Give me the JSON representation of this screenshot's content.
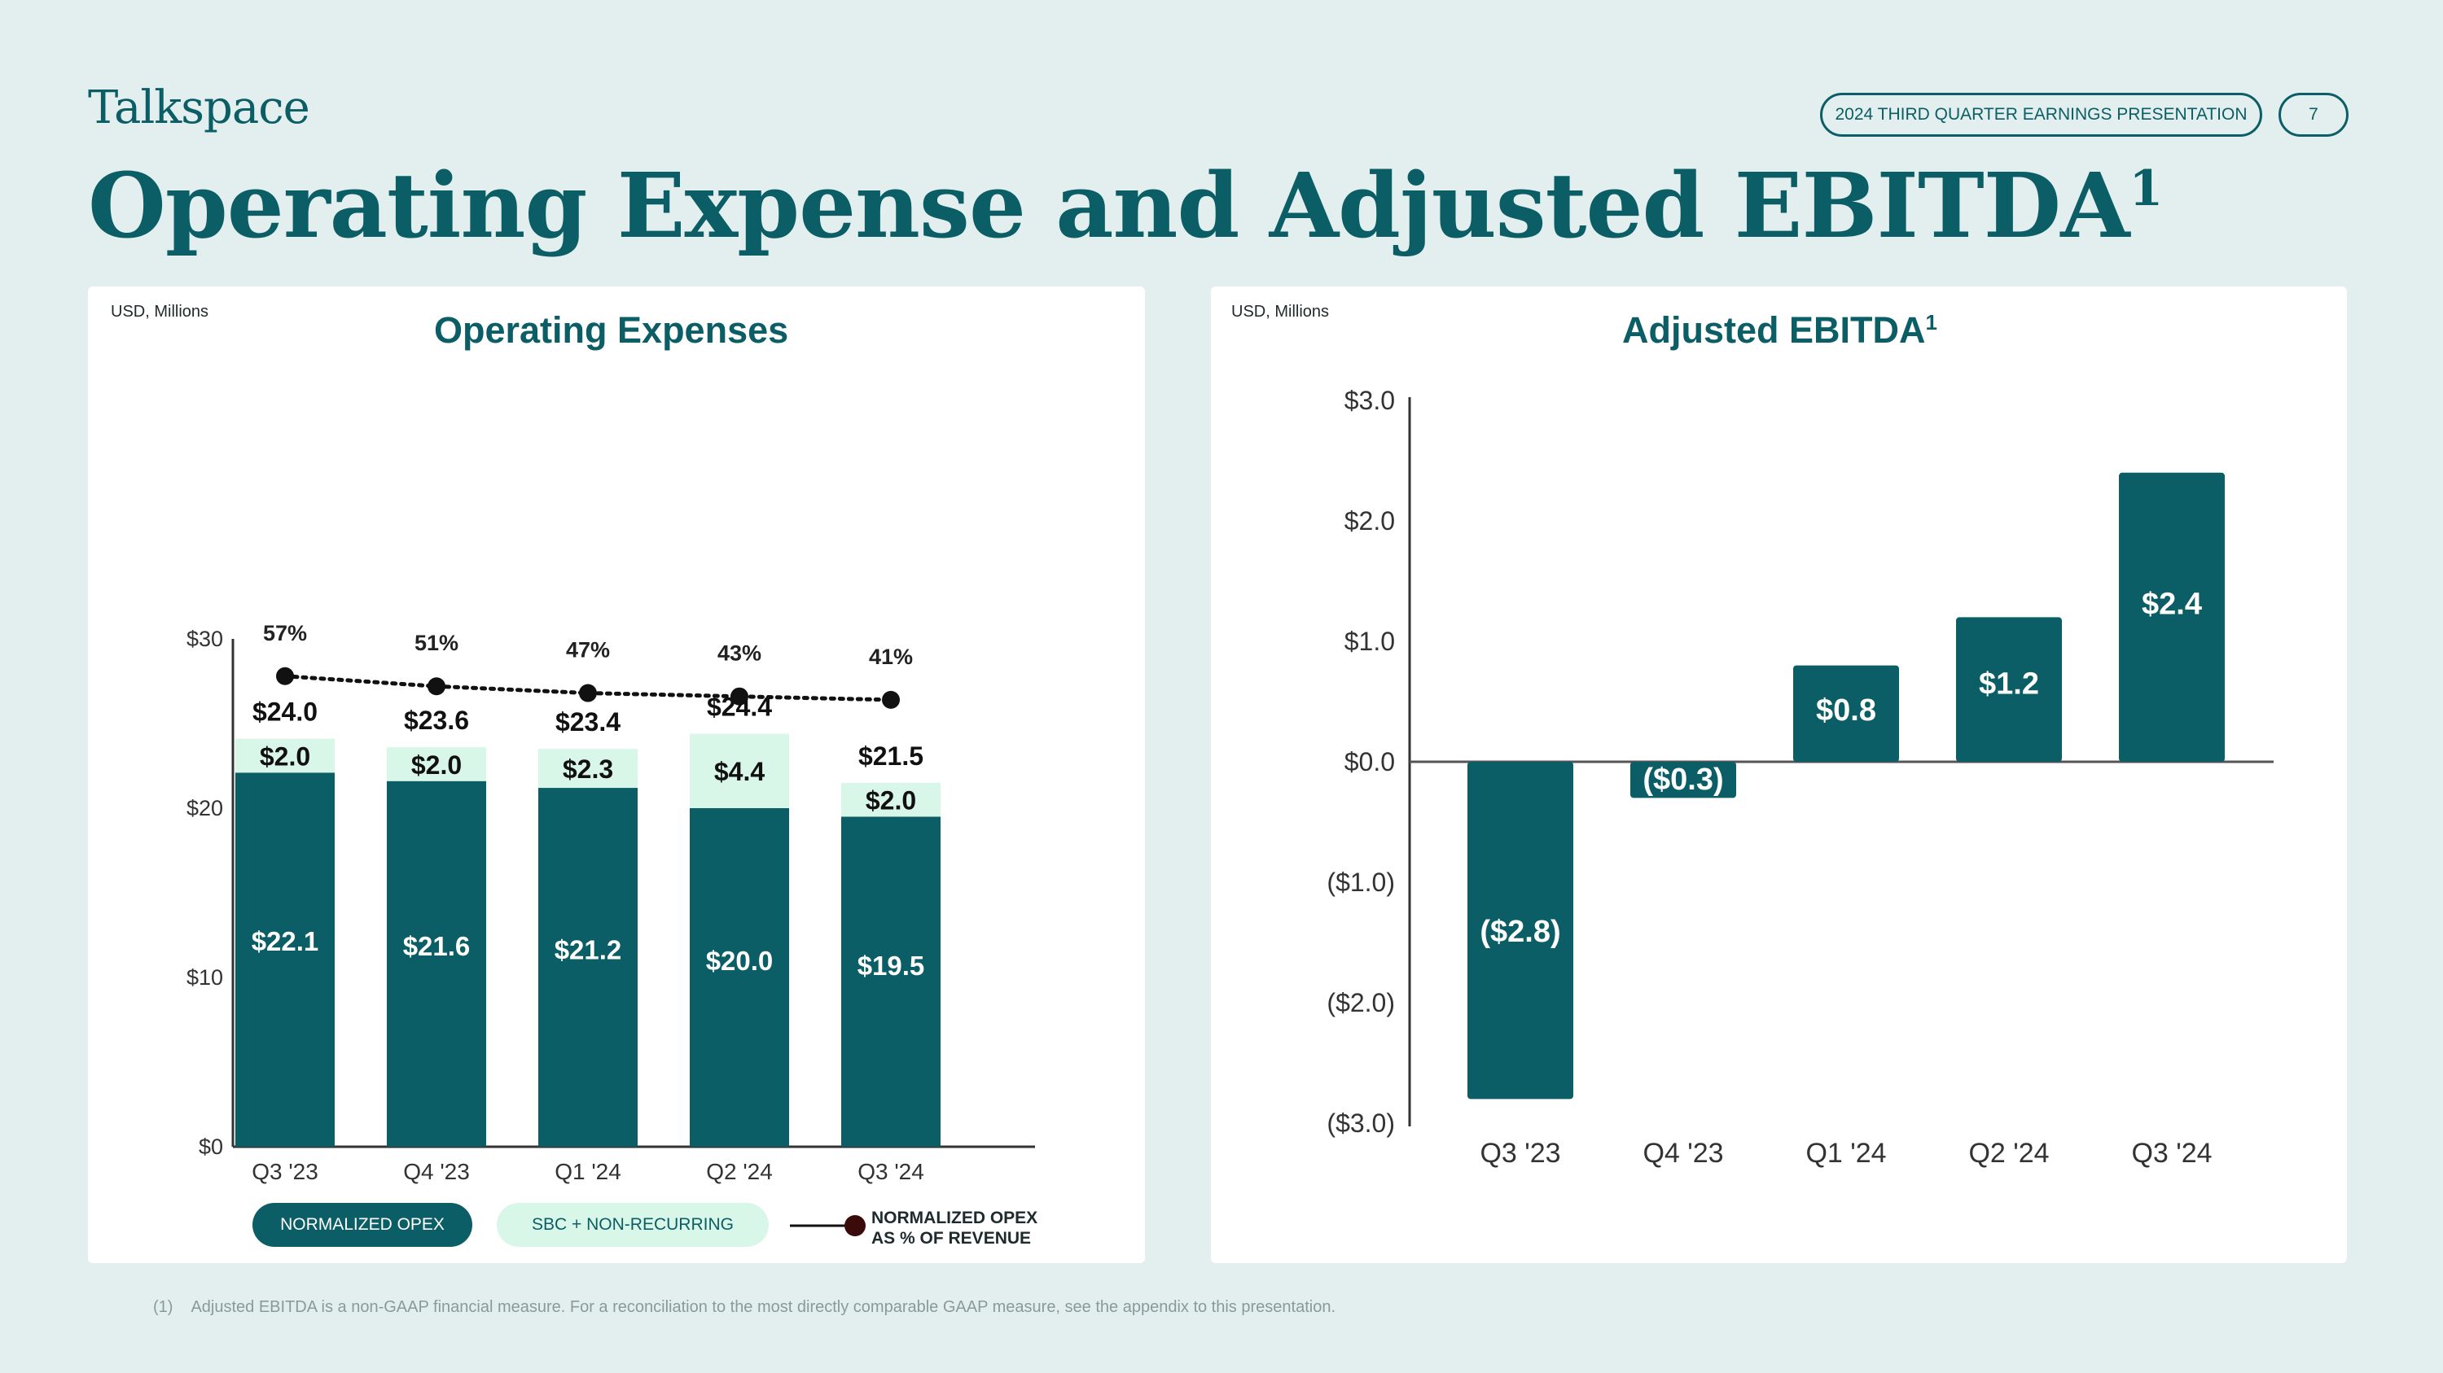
{
  "header": {
    "logo": "Talkspace",
    "presentation_label": "2024 THIRD QUARTER EARNINGS PRESENTATION",
    "page_number": "7",
    "title": "Operating Expense and Adjusted EBITDA",
    "title_footnote_marker": "1"
  },
  "colors": {
    "brand": "#0b5e65",
    "light_green": "#d9f7e8",
    "background": "#e2efee",
    "dot": "#111111"
  },
  "chart_data": [
    {
      "type": "bar",
      "stacked": true,
      "unit_label": "USD, Millions",
      "title": "Operating Expenses",
      "categories": [
        "Q3 '23",
        "Q4 '23",
        "Q1 '24",
        "Q2 '24",
        "Q3 '24"
      ],
      "series": [
        {
          "name": "NORMALIZED OPEX",
          "values": [
            22.1,
            21.6,
            21.2,
            20.0,
            19.5
          ],
          "labels": [
            "$22.1",
            "$21.6",
            "$21.2",
            "$20.0",
            "$19.5"
          ]
        },
        {
          "name": "SBC + NON-RECURRING",
          "values": [
            2.0,
            2.0,
            2.3,
            4.4,
            2.0
          ],
          "labels": [
            "$2.0",
            "$2.0",
            "$2.3",
            "$4.4",
            "$2.0"
          ]
        }
      ],
      "totals": [
        "$24.0",
        "$23.6",
        "$23.4",
        "$24.4",
        "$21.5"
      ],
      "line_series": {
        "name_line1": "NORMALIZED OPEX",
        "name_line2": "AS % OF REVENUE",
        "values": [
          57,
          51,
          47,
          43,
          41
        ],
        "labels": [
          "57%",
          "51%",
          "47%",
          "43%",
          "41%"
        ],
        "y_positions": [
          27.8,
          27.2,
          26.8,
          26.6,
          26.4
        ]
      },
      "y_ticks": [
        "$0",
        "$10",
        "$20",
        "$30"
      ],
      "y_tick_values": [
        0,
        10,
        20,
        30
      ],
      "ylim": [
        0,
        30
      ]
    },
    {
      "type": "bar",
      "unit_label": "USD, Millions",
      "title": "Adjusted EBITDA",
      "title_footnote_marker": "1",
      "categories": [
        "Q3 '23",
        "Q4 '23",
        "Q1 '24",
        "Q2 '24",
        "Q3 '24"
      ],
      "values": [
        -2.8,
        -0.3,
        0.8,
        1.2,
        2.4
      ],
      "labels": [
        "($2.8)",
        "($0.3)",
        "$0.8",
        "$1.2",
        "$2.4"
      ],
      "y_ticks": [
        "$3.0",
        "$2.0",
        "$1.0",
        "$0.0",
        "($1.0)",
        "($2.0)",
        "($3.0)"
      ],
      "y_tick_values": [
        3,
        2,
        1,
        0,
        -1,
        -2,
        -3
      ],
      "ylim": [
        -3,
        3
      ]
    }
  ],
  "legend": {
    "normalized_opex": "NORMALIZED OPEX",
    "sbc_nonrecurring": "SBC + NON-RECURRING",
    "line_label_1": "NORMALIZED OPEX",
    "line_label_2": "AS % OF REVENUE"
  },
  "footnote": {
    "number": "(1)",
    "text": "Adjusted EBITDA is a non-GAAP financial measure. For a reconciliation to the most directly comparable GAAP measure, see the appendix to this presentation."
  }
}
